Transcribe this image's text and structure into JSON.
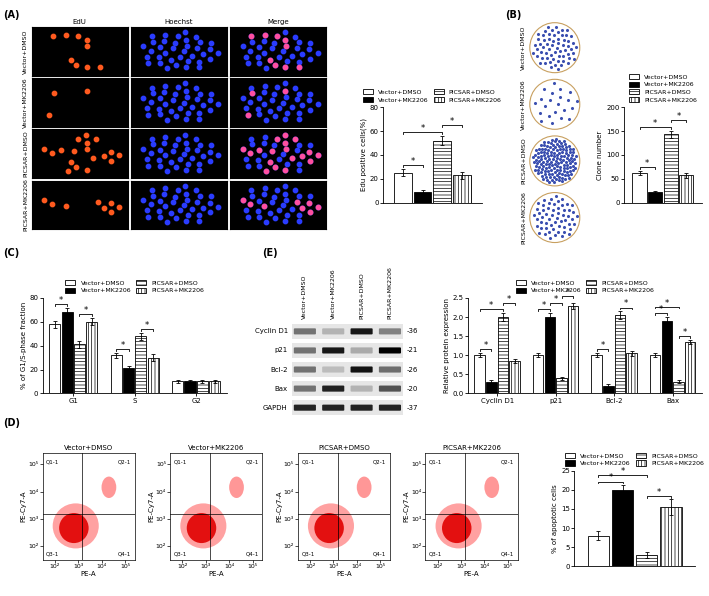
{
  "panel_A": {
    "label": "(A)",
    "columns": [
      "EdU",
      "Hoechst",
      "Merge"
    ],
    "rows": [
      "Vector+DMSO",
      "Vector+MK2206",
      "PICSAR+DMSO",
      "PICSAR+MK2206"
    ]
  },
  "panel_B": {
    "label": "(B)",
    "rows": [
      "Vector+DMSO",
      "Vector+MK2206",
      "PICSAR+DMSO",
      "PICSAR+MK2206"
    ]
  },
  "panel_D": {
    "label": "(D)",
    "titles": [
      "Vector+DMSO",
      "Vector+MK2206",
      "PICSAR+DMSO",
      "PICSAR+MK2206"
    ],
    "xlabel": "PE-A",
    "ylabel": "PE-Cy7-A",
    "log": true,
    "xlim": [
      30,
      260000
    ],
    "ylim": [
      30,
      260000
    ],
    "xticks": [
      {
        "value": 100,
        "label": "10²"
      },
      {
        "value": 1000,
        "label": "10³"
      },
      {
        "value": 10000,
        "label": "10⁴"
      },
      {
        "value": 100000,
        "label": "10⁵"
      }
    ],
    "yticks": [
      {
        "value": 100,
        "label": "10²"
      },
      {
        "value": 1000,
        "label": "10³"
      },
      {
        "value": 10000,
        "label": "10⁴"
      },
      {
        "value": 100000,
        "label": "10⁵"
      }
    ],
    "gates": {
      "x": 1500,
      "y": 1500
    },
    "quadrants": {
      "upper_left": "Q1-1",
      "upper_right": "Q2-1",
      "lower_left": "Q3-1",
      "lower_right": "Q4-1"
    }
  },
  "panel_E": {
    "label": "(E)",
    "lanes": [
      "Vector+DMSO",
      "Vector+MK2206",
      "PICSAR+DMSO",
      "PICSAR+MK2206"
    ],
    "bands": [
      {
        "name": "Cyclin D1",
        "mw": "-36"
      },
      {
        "name": "p21",
        "mw": "-21"
      },
      {
        "name": "Bcl-2",
        "mw": "-26"
      },
      {
        "name": "Bax",
        "mw": "-20"
      },
      {
        "name": "GAPDH",
        "mw": "-37"
      }
    ]
  },
  "chart_data": [
    {
      "type": "bar",
      "ylabel": "Edu positive cells(%)",
      "categories": [
        null
      ],
      "series": [
        {
          "name": "Vector+DMSO",
          "color": "#ffffff",
          "values": [
            25
          ],
          "errors": [
            3
          ]
        },
        {
          "name": "Vector+MK2206",
          "color": "#000000",
          "values": [
            9
          ],
          "errors": [
            1.5
          ]
        },
        {
          "name": "PICSAR+DMSO",
          "color": "#ffffff",
          "values": [
            52
          ],
          "errors": [
            4
          ]
        },
        {
          "name": "PICSAR+MK2206",
          "color": "#ffffff",
          "values": [
            23
          ],
          "errors": [
            3
          ]
        }
      ],
      "ylim": [
        0,
        80
      ],
      "yticks": [
        0,
        20,
        40,
        60,
        80
      ],
      "legend": "lower center",
      "tick_labels": "y",
      "significance": [
        {
          "category": 0,
          "pair": [
            0,
            1
          ],
          "label": "*"
        },
        {
          "category": 0,
          "pair": [
            0,
            2
          ],
          "label": "*"
        },
        {
          "category": 0,
          "pair": [
            2,
            3
          ],
          "label": "*"
        }
      ]
    },
    {
      "type": "bar",
      "ylabel": "Clone number",
      "categories": [
        null
      ],
      "series": [
        {
          "name": "Vector+DMSO",
          "color": "#ffffff",
          "values": [
            62
          ],
          "errors": [
            5
          ]
        },
        {
          "name": "Vector+MK2206",
          "color": "#000000",
          "values": [
            22
          ],
          "errors": [
            3
          ]
        },
        {
          "name": "PICSAR+DMSO",
          "color": "#ffffff",
          "values": [
            143
          ],
          "errors": [
            8
          ]
        },
        {
          "name": "PICSAR+MK2206",
          "color": "#ffffff",
          "values": [
            57
          ],
          "errors": [
            5
          ]
        }
      ],
      "ylim": [
        0,
        200
      ],
      "yticks": [
        0,
        50,
        100,
        150,
        200
      ],
      "legend": "lower center",
      "tick_labels": "y",
      "significance": [
        {
          "category": 0,
          "pair": [
            0,
            1
          ],
          "label": "*"
        },
        {
          "category": 0,
          "pair": [
            0,
            2
          ],
          "label": "*"
        },
        {
          "category": 0,
          "pair": [
            2,
            3
          ],
          "label": "*"
        }
      ]
    },
    {
      "type": "bar",
      "label": "(C)",
      "ylabel": "% of G1/S-phase fraction",
      "categories": [
        "G1",
        "S",
        "G2"
      ],
      "series": [
        {
          "name": "Vector+DMSO",
          "color": "#ffffff",
          "values": [
            58,
            32,
            10
          ],
          "errors": [
            3,
            2,
            1
          ]
        },
        {
          "name": "Vector+MK2206",
          "color": "#000000",
          "values": [
            68,
            21,
            10
          ],
          "errors": [
            4,
            2,
            1
          ]
        },
        {
          "name": "PICSAR+DMSO",
          "color": "#ffffff",
          "values": [
            41,
            48,
            10
          ],
          "errors": [
            3,
            3,
            1
          ]
        },
        {
          "name": "PICSAR+MK2206",
          "color": "#ffffff",
          "values": [
            60,
            30,
            10
          ],
          "errors": [
            3,
            3,
            1
          ]
        }
      ],
      "ylim": [
        0,
        80
      ],
      "yticks": [
        0,
        20,
        40,
        60,
        80
      ],
      "legend": "lower center",
      "significance": [
        {
          "category": 0,
          "pair": [
            0,
            1
          ],
          "label": "*"
        },
        {
          "category": 0,
          "pair": [
            2,
            3
          ],
          "label": "*"
        },
        {
          "category": 1,
          "pair": [
            0,
            1
          ],
          "label": "*"
        },
        {
          "category": 1,
          "pair": [
            2,
            3
          ],
          "label": "*"
        }
      ]
    },
    {
      "type": "bar",
      "ylabel": "% of apoptotic cells",
      "categories": [
        null
      ],
      "series": [
        {
          "name": "Vector+DMSO",
          "color": "#ffffff",
          "values": [
            8
          ],
          "errors": [
            1.2
          ]
        },
        {
          "name": "Vector+MK2206",
          "color": "#000000",
          "values": [
            20
          ],
          "errors": [
            1.2
          ]
        },
        {
          "name": "PICSAR+DMSO",
          "color": "#ffffff",
          "values": [
            3
          ],
          "errors": [
            0.8
          ]
        },
        {
          "name": "PICSAR+MK2206",
          "color": "#ffffff",
          "values": [
            15.5
          ],
          "errors": [
            2
          ]
        }
      ],
      "ylim": [
        0,
        25
      ],
      "yticks": [
        0,
        5,
        10,
        15,
        20,
        25
      ],
      "legend": "lower center",
      "tick_labels": "y",
      "significance": [
        {
          "category": 0,
          "pair": [
            0,
            1
          ],
          "label": "*"
        },
        {
          "category": 0,
          "pair": [
            0,
            2
          ],
          "label": "*"
        },
        {
          "category": 0,
          "pair": [
            2,
            3
          ],
          "label": "*"
        }
      ]
    },
    {
      "type": "bar",
      "ylabel": "Relative protein expression",
      "categories": [
        "Cyclin D1",
        "p21",
        "Bcl-2",
        "Bax"
      ],
      "series": [
        {
          "name": "Vector+DMSO",
          "color": "#ffffff",
          "values": [
            1.0,
            1.0,
            1.0,
            1.0
          ],
          "errors": [
            0.05,
            0.05,
            0.05,
            0.05
          ]
        },
        {
          "name": "Vector+MK2206",
          "color": "#000000",
          "values": [
            0.3,
            2.0,
            0.2,
            1.9
          ],
          "errors": [
            0.04,
            0.1,
            0.04,
            0.1
          ]
        },
        {
          "name": "PICSAR+DMSO",
          "color": "#ffffff",
          "values": [
            2.0,
            0.4,
            2.05,
            0.3
          ],
          "errors": [
            0.1,
            0.04,
            0.1,
            0.04
          ]
        },
        {
          "name": "PICSAR+MK2206",
          "color": "#ffffff",
          "values": [
            0.85,
            2.3,
            1.05,
            1.35
          ],
          "errors": [
            0.05,
            0.08,
            0.06,
            0.06
          ]
        }
      ],
      "ylim": [
        0,
        2.5
      ],
      "yticks": [
        {
          "value": 0,
          "label": "0.0"
        },
        0.5,
        {
          "value": 1,
          "label": "1.0"
        },
        1.5,
        {
          "value": 2,
          "label": "2.0"
        },
        2.5
      ],
      "legend": "lower center",
      "significance": [
        {
          "category": 0,
          "pair": [
            0,
            1
          ],
          "label": "*"
        },
        {
          "category": 0,
          "pair": [
            0,
            2
          ],
          "label": "*"
        },
        {
          "category": 0,
          "pair": [
            2,
            3
          ],
          "label": "*"
        },
        {
          "category": 1,
          "pair": [
            0,
            1
          ],
          "label": "*"
        },
        {
          "category": 1,
          "pair": [
            1,
            2
          ],
          "label": "*"
        },
        {
          "category": 1,
          "pair": [
            2,
            3
          ],
          "label": "*"
        },
        {
          "category": 2,
          "pair": [
            0,
            1
          ],
          "label": "*"
        },
        {
          "category": 2,
          "pair": [
            2,
            3
          ],
          "label": "*"
        },
        {
          "category": 3,
          "pair": [
            0,
            1
          ],
          "label": "*"
        },
        {
          "category": 3,
          "pair": [
            0,
            2
          ],
          "label": "*"
        },
        {
          "category": 3,
          "pair": [
            2,
            3
          ],
          "label": "*"
        }
      ]
    }
  ]
}
